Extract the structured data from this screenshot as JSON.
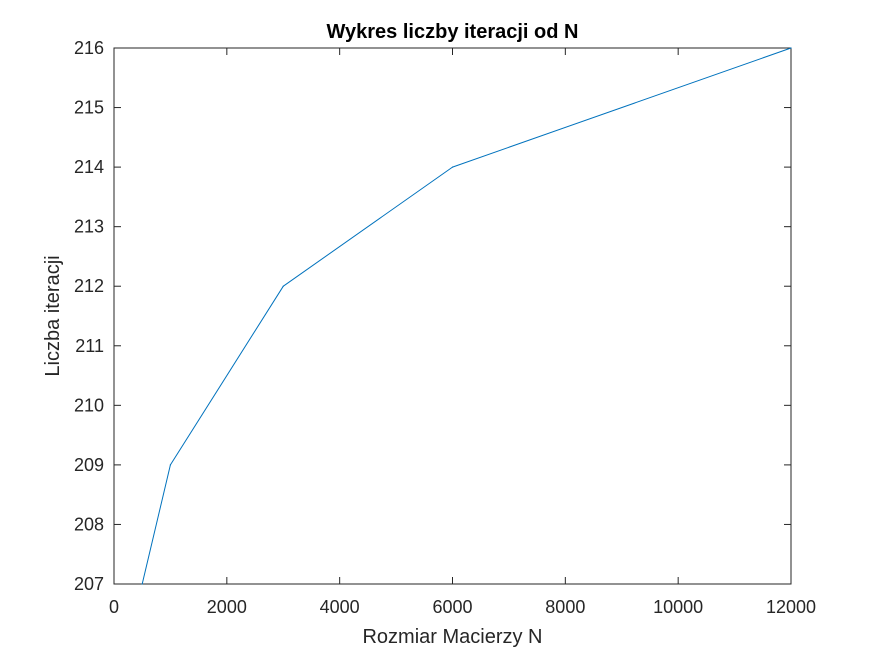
{
  "chart_data": {
    "type": "line",
    "title": "Wykres liczby iteracji od N",
    "xlabel": "Rozmiar Macierzy N",
    "ylabel": "Liczba iteracji",
    "xlim": [
      0,
      12000
    ],
    "ylim": [
      207,
      216
    ],
    "x_ticks": [
      0,
      2000,
      4000,
      6000,
      8000,
      10000,
      12000
    ],
    "y_ticks": [
      207,
      208,
      209,
      210,
      211,
      212,
      213,
      214,
      215,
      216
    ],
    "grid": false,
    "series": [
      {
        "x": [
          500,
          1000,
          3000,
          6000,
          12000
        ],
        "y": [
          207,
          209,
          212,
          214,
          216
        ],
        "color": "#0072BD"
      }
    ]
  }
}
